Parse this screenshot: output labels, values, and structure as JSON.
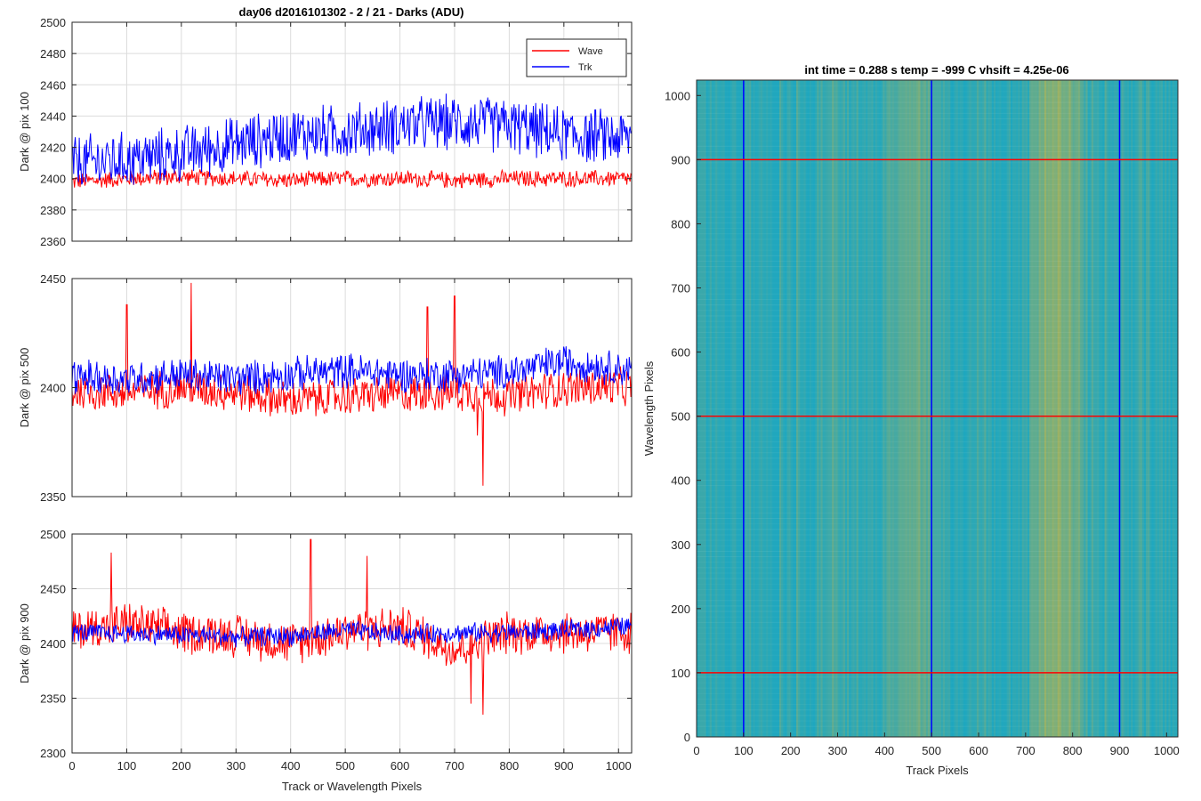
{
  "figure": {
    "suptitle": "day06 d2016101302 - 2 / 21 - Darks (ADU)",
    "colors": {
      "wave": "#ff0000",
      "trk": "#0000ff",
      "grid": "#dcdcdc",
      "axis": "#262626",
      "heat_low": "#12a6c8",
      "heat_high": "#a8b25a"
    }
  },
  "chart_data": [
    {
      "type": "line",
      "ylabel": "Dark @ pix 100",
      "xlabel": "",
      "xlim": [
        0,
        1024
      ],
      "ylim": [
        2360,
        2500
      ],
      "xticks": [
        0,
        100,
        200,
        300,
        400,
        500,
        600,
        700,
        800,
        900,
        1000
      ],
      "yticks": [
        2360,
        2380,
        2400,
        2420,
        2440,
        2460,
        2480,
        2500
      ],
      "grid": true,
      "legend": {
        "position": "top-right",
        "entries": [
          "Wave",
          "Trk"
        ]
      },
      "series": [
        {
          "name": "Wave",
          "color": "#ff0000",
          "x": [
            0,
            100,
            200,
            300,
            400,
            500,
            600,
            700,
            800,
            900,
            1024
          ],
          "y": [
            2398,
            2400,
            2401,
            2400,
            2399,
            2400,
            2400,
            2399,
            2400,
            2400,
            2400
          ],
          "noise_amplitude": 6
        },
        {
          "name": "Trk",
          "color": "#0000ff",
          "x": [
            0,
            100,
            200,
            300,
            400,
            500,
            600,
            700,
            800,
            900,
            1024
          ],
          "y": [
            2410,
            2412,
            2416,
            2422,
            2428,
            2430,
            2434,
            2436,
            2434,
            2428,
            2426
          ],
          "noise_amplitude": 20
        }
      ]
    },
    {
      "type": "line",
      "ylabel": "Dark @ pix 500",
      "xlabel": "",
      "xlim": [
        0,
        1024
      ],
      "ylim": [
        2350,
        2450
      ],
      "xticks": [
        0,
        100,
        200,
        300,
        400,
        500,
        600,
        700,
        800,
        900,
        1000
      ],
      "yticks": [
        2350,
        2400,
        2450
      ],
      "grid": true,
      "series": [
        {
          "name": "Wave",
          "color": "#ff0000",
          "x": [
            0,
            100,
            200,
            300,
            400,
            500,
            600,
            700,
            800,
            900,
            1024
          ],
          "y": [
            2398,
            2398,
            2400,
            2398,
            2394,
            2396,
            2397,
            2398,
            2396,
            2400,
            2400
          ],
          "noise_amplitude": 10,
          "spikes": [
            {
              "x": 100,
              "y": 2438
            },
            {
              "x": 218,
              "y": 2448
            },
            {
              "x": 650,
              "y": 2437
            },
            {
              "x": 700,
              "y": 2442
            },
            {
              "x": 752,
              "y": 2355
            },
            {
              "x": 742,
              "y": 2378
            }
          ]
        },
        {
          "name": "Trk",
          "color": "#0000ff",
          "x": [
            0,
            100,
            200,
            300,
            400,
            500,
            600,
            700,
            800,
            900,
            1024
          ],
          "y": [
            2405,
            2404,
            2406,
            2404,
            2406,
            2408,
            2406,
            2406,
            2407,
            2412,
            2408
          ],
          "noise_amplitude": 9
        }
      ]
    },
    {
      "type": "line",
      "ylabel": "Dark @ pix 900",
      "xlabel": "Track or Wavelength Pixels",
      "xlim": [
        0,
        1024
      ],
      "ylim": [
        2300,
        2500
      ],
      "xticks": [
        0,
        100,
        200,
        300,
        400,
        500,
        600,
        700,
        800,
        900,
        1000
      ],
      "yticks": [
        2300,
        2350,
        2400,
        2450,
        2500
      ],
      "grid": true,
      "series": [
        {
          "name": "Wave",
          "color": "#ff0000",
          "x": [
            0,
            100,
            200,
            300,
            400,
            500,
            600,
            700,
            800,
            900,
            1024
          ],
          "y": [
            2412,
            2418,
            2410,
            2408,
            2400,
            2412,
            2415,
            2395,
            2410,
            2410,
            2410
          ],
          "noise_amplitude": 22,
          "spikes": [
            {
              "x": 72,
              "y": 2483
            },
            {
              "x": 437,
              "y": 2495
            },
            {
              "x": 540,
              "y": 2480
            },
            {
              "x": 752,
              "y": 2335
            },
            {
              "x": 730,
              "y": 2345
            }
          ]
        },
        {
          "name": "Trk",
          "color": "#0000ff",
          "x": [
            0,
            100,
            200,
            300,
            400,
            500,
            600,
            700,
            800,
            900,
            1024
          ],
          "y": [
            2410,
            2409,
            2408,
            2406,
            2407,
            2412,
            2408,
            2410,
            2410,
            2412,
            2416
          ],
          "noise_amplitude": 10
        }
      ]
    },
    {
      "type": "heatmap",
      "title": "int time = 0.288 s    temp = -999 C    vhsift = 4.25e-06",
      "xlabel": "Track Pixels",
      "ylabel": "Wavelength Pixels",
      "xlim": [
        0,
        1024
      ],
      "ylim": [
        0,
        1024
      ],
      "xticks": [
        0,
        100,
        200,
        300,
        400,
        500,
        600,
        700,
        800,
        900,
        1000
      ],
      "yticks": [
        0,
        100,
        200,
        300,
        400,
        500,
        600,
        700,
        800,
        900,
        1000
      ],
      "bright_bands": [
        {
          "x0": 395,
          "x1": 520,
          "level": 0.45
        },
        {
          "x0": 260,
          "x1": 320,
          "level": 0.2
        },
        {
          "x0": 710,
          "x1": 820,
          "level": 0.75
        }
      ],
      "vertical_markers": {
        "color": "#0000ff",
        "x": [
          100,
          500,
          900
        ]
      },
      "horizontal_markers": {
        "color": "#ff0000",
        "y": [
          100,
          500,
          900
        ]
      }
    }
  ]
}
